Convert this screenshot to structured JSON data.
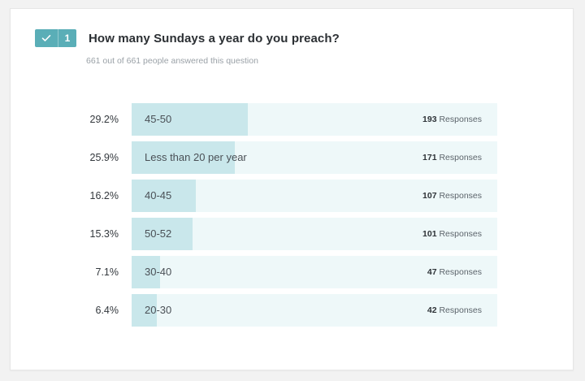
{
  "question": {
    "number": "1",
    "title": "How many Sundays a year do you preach?",
    "answered_text": "661 out of 661 people answered this question",
    "badge_color": "#5aaeb7",
    "badge_icon": "check-icon"
  },
  "responses_suffix": "Responses",
  "colors": {
    "track": "#eef8f9",
    "fill": "#c9e7eb"
  },
  "answers": [
    {
      "percent_text": "29.2%",
      "percent": 29.2,
      "label": "45-50",
      "count": "193"
    },
    {
      "percent_text": "25.9%",
      "percent": 25.9,
      "label": "Less than 20 per year",
      "count": "171"
    },
    {
      "percent_text": "16.2%",
      "percent": 16.2,
      "label": "40-45",
      "count": "107"
    },
    {
      "percent_text": "15.3%",
      "percent": 15.3,
      "label": "50-52",
      "count": "101"
    },
    {
      "percent_text": "7.1%",
      "percent": 7.1,
      "label": "30-40",
      "count": "47"
    },
    {
      "percent_text": "6.4%",
      "percent": 6.4,
      "label": "20-30",
      "count": "42"
    }
  ]
}
